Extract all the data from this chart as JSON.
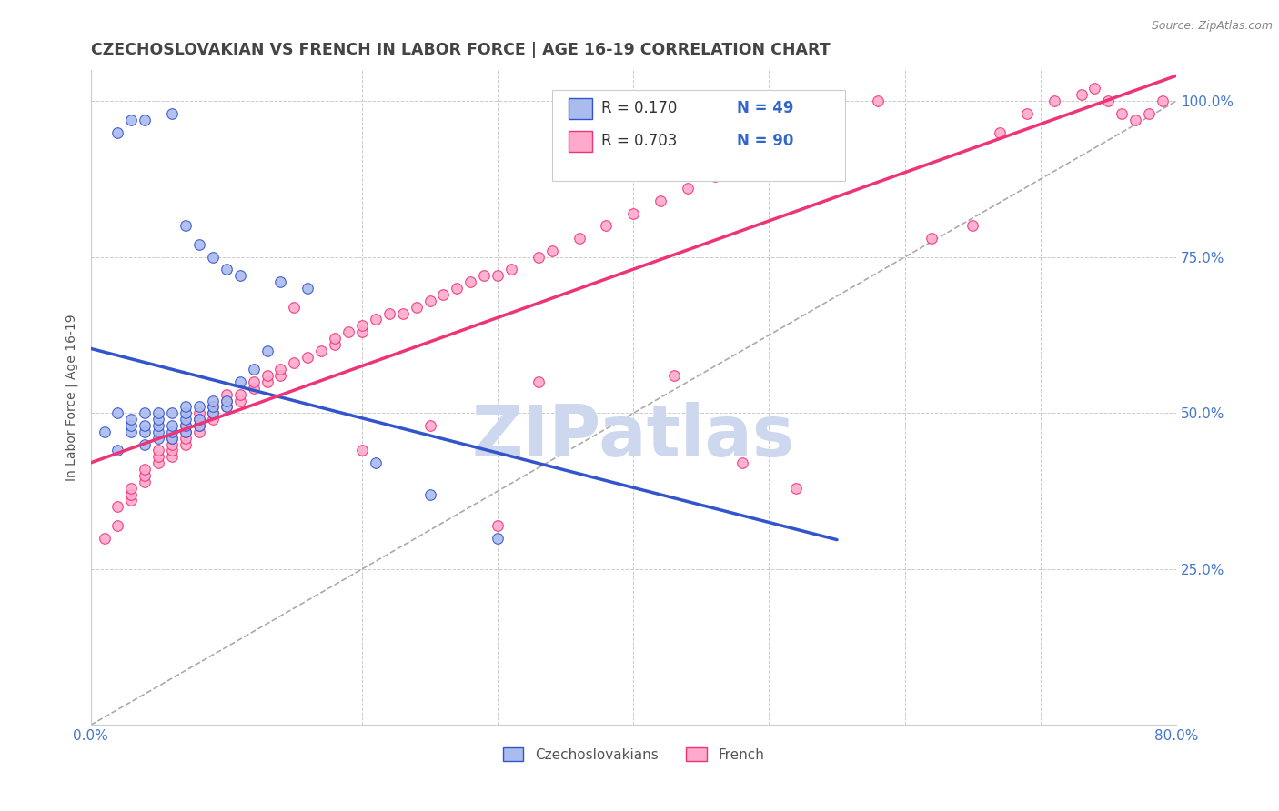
{
  "title": "CZECHOSLOVAKIAN VS FRENCH IN LABOR FORCE | AGE 16-19 CORRELATION CHART",
  "source_text": "Source: ZipAtlas.com",
  "ylabel": "In Labor Force | Age 16-19",
  "xlim": [
    0.0,
    0.8
  ],
  "ylim": [
    0.0,
    1.05
  ],
  "xtick_positions": [
    0.0,
    0.1,
    0.2,
    0.3,
    0.4,
    0.5,
    0.6,
    0.7,
    0.8
  ],
  "xticklabels": [
    "0.0%",
    "",
    "",
    "",
    "",
    "",
    "",
    "",
    "80.0%"
  ],
  "ytick_positions": [
    0.25,
    0.5,
    0.75,
    1.0
  ],
  "ytick_labels": [
    "25.0%",
    "50.0%",
    "75.0%",
    "100.0%"
  ],
  "grid_color": "#cccccc",
  "background_color": "#ffffff",
  "title_color": "#444444",
  "title_fontsize": 12.5,
  "watermark_text": "ZIPatlas",
  "watermark_color": "#cdd8ee",
  "legend_R1": "R = 0.170",
  "legend_N1": "N = 49",
  "legend_R2": "R = 0.703",
  "legend_N2": "N = 90",
  "legend_color": "#3366cc",
  "axis_label_color": "#4477cc",
  "blue_scatter_color": "#aabbee",
  "pink_scatter_color": "#ffaacc",
  "blue_line_color": "#3355cc",
  "pink_line_color": "#ee3377",
  "dashed_line_color": "#aaaaaa",
  "marker_size": 70,
  "blue_x": [
    0.01,
    0.02,
    0.02,
    0.03,
    0.03,
    0.03,
    0.04,
    0.04,
    0.04,
    0.04,
    0.05,
    0.05,
    0.05,
    0.05,
    0.05,
    0.06,
    0.06,
    0.06,
    0.06,
    0.07,
    0.07,
    0.07,
    0.07,
    0.07,
    0.08,
    0.08,
    0.08,
    0.09,
    0.09,
    0.09,
    0.1,
    0.1,
    0.11,
    0.12,
    0.13,
    0.02,
    0.03,
    0.04,
    0.06,
    0.07,
    0.08,
    0.09,
    0.1,
    0.11,
    0.14,
    0.16,
    0.21,
    0.25,
    0.3
  ],
  "blue_y": [
    0.47,
    0.44,
    0.5,
    0.47,
    0.48,
    0.49,
    0.45,
    0.47,
    0.48,
    0.5,
    0.46,
    0.47,
    0.48,
    0.49,
    0.5,
    0.46,
    0.47,
    0.48,
    0.5,
    0.47,
    0.48,
    0.49,
    0.5,
    0.51,
    0.48,
    0.49,
    0.51,
    0.5,
    0.51,
    0.52,
    0.51,
    0.52,
    0.55,
    0.57,
    0.6,
    0.95,
    0.97,
    0.97,
    0.98,
    0.8,
    0.77,
    0.75,
    0.73,
    0.72,
    0.71,
    0.7,
    0.42,
    0.37,
    0.3
  ],
  "pink_x": [
    0.01,
    0.02,
    0.02,
    0.03,
    0.03,
    0.03,
    0.04,
    0.04,
    0.04,
    0.05,
    0.05,
    0.05,
    0.06,
    0.06,
    0.06,
    0.06,
    0.07,
    0.07,
    0.07,
    0.07,
    0.08,
    0.08,
    0.08,
    0.08,
    0.09,
    0.09,
    0.09,
    0.1,
    0.1,
    0.1,
    0.11,
    0.11,
    0.12,
    0.12,
    0.13,
    0.13,
    0.14,
    0.14,
    0.15,
    0.16,
    0.17,
    0.18,
    0.18,
    0.19,
    0.2,
    0.2,
    0.21,
    0.22,
    0.23,
    0.24,
    0.25,
    0.26,
    0.27,
    0.28,
    0.29,
    0.3,
    0.31,
    0.33,
    0.34,
    0.36,
    0.38,
    0.4,
    0.42,
    0.44,
    0.46,
    0.48,
    0.5,
    0.52,
    0.55,
    0.58,
    0.62,
    0.65,
    0.67,
    0.69,
    0.71,
    0.73,
    0.74,
    0.75,
    0.76,
    0.77,
    0.78,
    0.79,
    0.15,
    0.33,
    0.43,
    0.48,
    0.52,
    0.2,
    0.25,
    0.3
  ],
  "pink_y": [
    0.3,
    0.32,
    0.35,
    0.36,
    0.37,
    0.38,
    0.39,
    0.4,
    0.41,
    0.42,
    0.43,
    0.44,
    0.43,
    0.44,
    0.45,
    0.46,
    0.45,
    0.46,
    0.47,
    0.48,
    0.47,
    0.48,
    0.49,
    0.5,
    0.49,
    0.5,
    0.51,
    0.51,
    0.52,
    0.53,
    0.52,
    0.53,
    0.54,
    0.55,
    0.55,
    0.56,
    0.56,
    0.57,
    0.58,
    0.59,
    0.6,
    0.61,
    0.62,
    0.63,
    0.63,
    0.64,
    0.65,
    0.66,
    0.66,
    0.67,
    0.68,
    0.69,
    0.7,
    0.71,
    0.72,
    0.72,
    0.73,
    0.75,
    0.76,
    0.78,
    0.8,
    0.82,
    0.84,
    0.86,
    0.88,
    0.9,
    0.92,
    0.94,
    0.97,
    1.0,
    0.78,
    0.8,
    0.95,
    0.98,
    1.0,
    1.01,
    1.02,
    1.0,
    0.98,
    0.97,
    0.98,
    1.0,
    0.67,
    0.55,
    0.56,
    0.42,
    0.38,
    0.44,
    0.48,
    0.32
  ]
}
